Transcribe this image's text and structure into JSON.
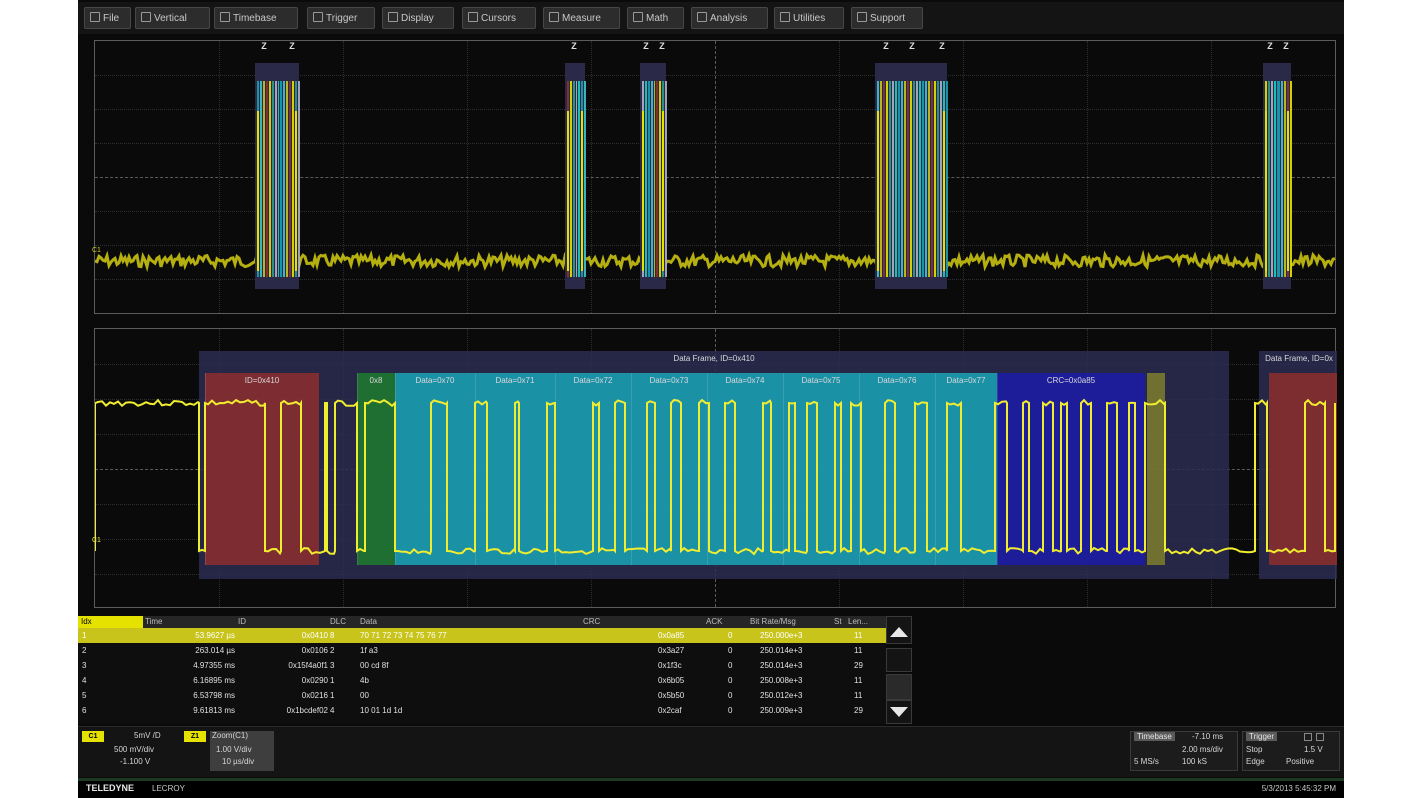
{
  "menu": [
    {
      "label": "File",
      "icon": "folder-icon"
    },
    {
      "label": "Vertical",
      "icon": "vertical-icon"
    },
    {
      "label": "Timebase",
      "icon": "timebase-icon"
    },
    {
      "label": "Trigger",
      "icon": "trigger-icon"
    },
    {
      "label": "Display",
      "icon": "display-icon"
    },
    {
      "label": "Cursors",
      "icon": "cursor-icon"
    },
    {
      "label": "Measure",
      "icon": "measure-icon"
    },
    {
      "label": "Math",
      "icon": "math-icon"
    },
    {
      "label": "Analysis",
      "icon": "analysis-icon"
    },
    {
      "label": "Utilities",
      "icon": "utilities-icon"
    },
    {
      "label": "Support",
      "icon": "support-icon"
    }
  ],
  "top_trace": {
    "channel_label": "C1",
    "color": "#d4cc10",
    "bursts": [
      {
        "tags": [
          "Z",
          "Z"
        ]
      },
      {
        "tags": [
          "Z"
        ]
      },
      {
        "tags": [
          "Z",
          "Z"
        ]
      },
      {
        "tags": [
          "Z",
          "Z",
          "Z"
        ]
      },
      {
        "tags": [
          "Z",
          "Z"
        ]
      }
    ]
  },
  "zoom_trace": {
    "channel_label": "C1",
    "frame_label": "Data Frame, ID=0x410",
    "next_frame_label": "Data Frame, ID=0x",
    "fields": [
      {
        "label": "ID=0x410",
        "type": "id"
      },
      {
        "label": "0x8",
        "type": "dlc"
      },
      {
        "label": "Data=0x70",
        "type": "data"
      },
      {
        "label": "Data=0x71",
        "type": "data"
      },
      {
        "label": "Data=0x72",
        "type": "data"
      },
      {
        "label": "Data=0x73",
        "type": "data"
      },
      {
        "label": "Data=0x74",
        "type": "data"
      },
      {
        "label": "Data=0x75",
        "type": "data"
      },
      {
        "label": "Data=0x76",
        "type": "data"
      },
      {
        "label": "Data=0x77",
        "type": "data"
      },
      {
        "label": "CRC=0x0a85",
        "type": "crc"
      }
    ],
    "colors": {
      "id": "#8a2e2e",
      "dlc": "#1e7a2e",
      "data": "#1aa0b4",
      "crc": "#1c1ca6",
      "frame": "#2c2c52",
      "trace": "#f0ec30"
    }
  },
  "table": {
    "headers": [
      "Idx",
      "Time",
      "ID",
      "DLC",
      "Data",
      "CRC",
      "ACK",
      "Bit Rate/Msg",
      "St",
      "Len..."
    ],
    "rows": [
      {
        "idx": "1",
        "time": "53.9627 µs",
        "id": "0x0410",
        "dlc": "8",
        "data": "70 71 72 73 74 75 76 77",
        "crc": "0x0a85",
        "ack": "0",
        "rate": "250.000e+3",
        "len": "11"
      },
      {
        "idx": "2",
        "time": "263.014 µs",
        "id": "0x0106",
        "dlc": "2",
        "data": "1f a3",
        "crc": "0x3a27",
        "ack": "0",
        "rate": "250.014e+3",
        "len": "11"
      },
      {
        "idx": "3",
        "time": "4.97355 ms",
        "id": "0x15f4a0f1",
        "dlc": "3",
        "data": "00 cd 8f",
        "crc": "0x1f3c",
        "ack": "0",
        "rate": "250.014e+3",
        "len": "29"
      },
      {
        "idx": "4",
        "time": "6.16895 ms",
        "id": "0x0290",
        "dlc": "1",
        "data": "4b",
        "crc": "0x6b05",
        "ack": "0",
        "rate": "250.008e+3",
        "len": "11"
      },
      {
        "idx": "5",
        "time": "6.53798 ms",
        "id": "0x0216",
        "dlc": "1",
        "data": "00",
        "crc": "0x5b50",
        "ack": "0",
        "rate": "250.012e+3",
        "len": "11"
      },
      {
        "idx": "6",
        "time": "9.61813 ms",
        "id": "0x1bcdef02",
        "dlc": "4",
        "data": "10 01 1d 1d",
        "crc": "0x2caf",
        "ack": "0",
        "rate": "250.009e+3",
        "len": "29"
      }
    ]
  },
  "status": {
    "c1_badge": "C1",
    "c1_scale": "5mV /D",
    "c1_offset": "500 mV/div",
    "c1_value": "-1.100 V",
    "z1_badge": "Z1",
    "z1_label": "Zoom(C1)",
    "z1_scale": "1.00 V/div",
    "z1_time": "10 µs/div",
    "timebase_label": "Timebase",
    "timebase_delay": "-7.10 ms",
    "timebase_div": "2.00 ms/div",
    "sample_rate": "5 MS/s",
    "sample_pts": "100 kS",
    "trigger_label": "Trigger",
    "trigger_mode": "Stop",
    "trigger_level": "1.5 V",
    "trigger_type": "Edge",
    "trigger_slope": "Positive"
  },
  "bottom": {
    "brand": "TELEDYNE",
    "brand_sub": "LECROY",
    "datetime": "5/3/2013 5:45:32 PM"
  }
}
